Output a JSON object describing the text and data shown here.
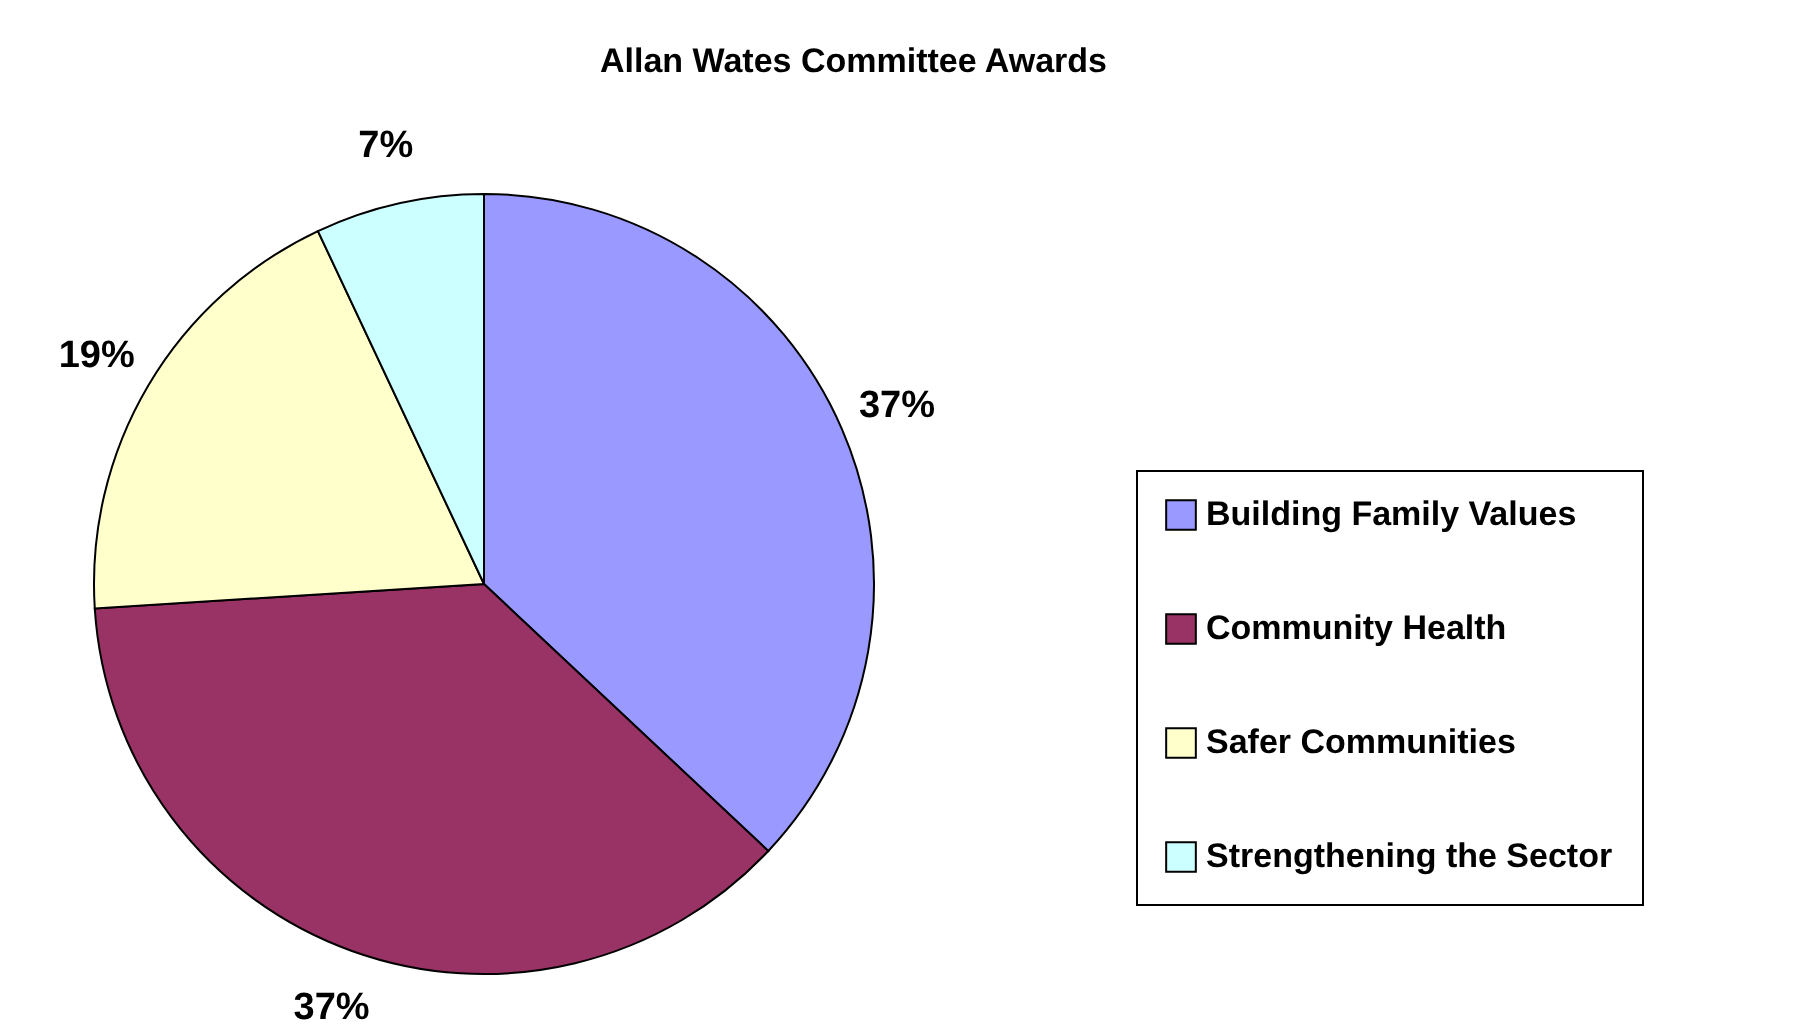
{
  "chart_data": {
    "type": "pie",
    "title": "Allan Wates Committee Awards",
    "categories": [
      "Building Family Values",
      "Community Health",
      "Safer Communities",
      "Strengthening the Sector"
    ],
    "values": [
      37,
      37,
      19,
      7
    ],
    "value_labels": [
      "37%",
      "37%",
      "19%",
      "7%"
    ],
    "colors": [
      "#9999ff",
      "#993366",
      "#ffffcc",
      "#ccffff"
    ],
    "legend": "right"
  }
}
